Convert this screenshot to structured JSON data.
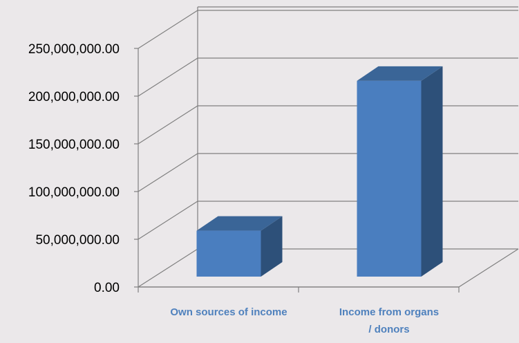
{
  "chart_data": {
    "type": "bar",
    "style": "3d-column",
    "categories": [
      "Own sources of income",
      "Income from organs / donors"
    ],
    "category_label_lines": [
      [
        "Own sources of income"
      ],
      [
        "Income from organs",
        "/ donors"
      ]
    ],
    "values": [
      59000000,
      216000000
    ],
    "ylim": [
      0,
      250000000
    ],
    "yticks": [
      0,
      50000000,
      100000000,
      150000000,
      200000000,
      250000000
    ],
    "ytick_labels": [
      "0.00",
      "50,000,000.00",
      "100,000,000.00",
      "150,000,000.00",
      "200,000,000.00",
      "250,000,000.00"
    ],
    "grid": true,
    "legend": "none",
    "colors": {
      "bar_front": "#4a7ebf",
      "bar_top": "#3a6597",
      "bar_side": "#2d5079",
      "grid": "#7f7f7f",
      "category_text": "#4f81bd",
      "background": "#ebe8ea"
    }
  }
}
